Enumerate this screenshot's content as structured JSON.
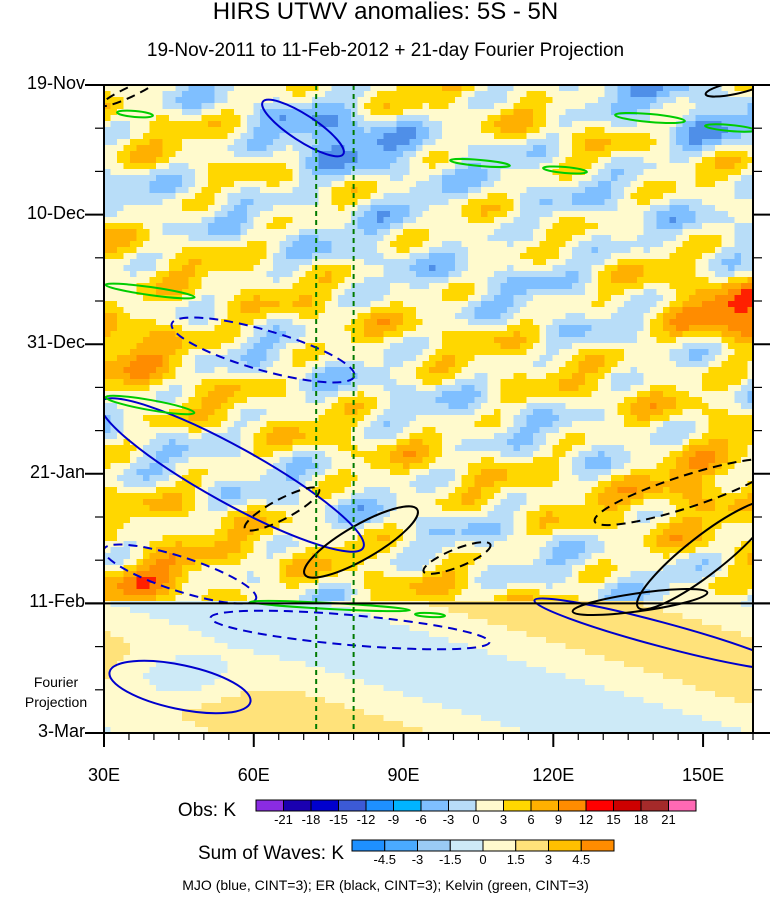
{
  "chart_data": {
    "type": "heatmap",
    "title": "HIRS UTWV anomalies: 5S - 5N",
    "subtitle": "19-Nov-2011 to 11-Feb-2012 + 21-day Fourier Projection",
    "x_tick_labels": [
      "30E",
      "60E",
      "90E",
      "120E",
      "150E"
    ],
    "x_ticks": [
      30,
      60,
      90,
      120,
      150
    ],
    "xlim": [
      30,
      160
    ],
    "y_tick_labels": [
      "19-Nov",
      "10-Dec",
      "31-Dec",
      "21-Jan",
      "11-Feb",
      "3-Mar"
    ],
    "y_ticks_days": [
      0,
      21,
      42,
      63,
      84,
      105
    ],
    "ylim_days": [
      0,
      105
    ],
    "projection_start_day": 84,
    "projection_label": "Fourier Projection",
    "vertical_reference_lines_longitude": [
      72.5,
      80
    ],
    "colorbars": [
      {
        "label": "Obs: K",
        "tick_labels": [
          "-21",
          "-18",
          "-15",
          "-12",
          "-9",
          "-6",
          "-3",
          "0",
          "3",
          "6",
          "9",
          "12",
          "15",
          "18",
          "21"
        ],
        "colors": [
          "#8a2be2",
          "#1a00b0",
          "#0000cd",
          "#3c5ad6",
          "#1e90ff",
          "#00b4ff",
          "#7fbfff",
          "#b8ddf8",
          "#fffacd",
          "#ffd700",
          "#ffb000",
          "#ff8c00",
          "#ff0000",
          "#cd0000",
          "#a52a2a",
          "#ff69b4"
        ]
      },
      {
        "label": "Sum of Waves: K",
        "tick_labels": [
          "-4.5",
          "-3",
          "-1.5",
          "0",
          "1.5",
          "3",
          "4.5"
        ],
        "colors": [
          "#1e90ff",
          "#4aaaff",
          "#9acbf5",
          "#cdeaf7",
          "#fffacd",
          "#ffe27a",
          "#ffc000",
          "#ff8c00"
        ]
      }
    ],
    "footer": "MJO (blue, CINT=3); ER (black, CINT=3); Kelvin (green, CINT=3)",
    "series": [
      {
        "name": "MJO",
        "color": "#0000cd",
        "contour_interval": 3
      },
      {
        "name": "ER",
        "color": "#000000",
        "contour_interval": 3
      },
      {
        "name": "Kelvin",
        "color": "#00cc00",
        "contour_interval": 3
      }
    ]
  }
}
